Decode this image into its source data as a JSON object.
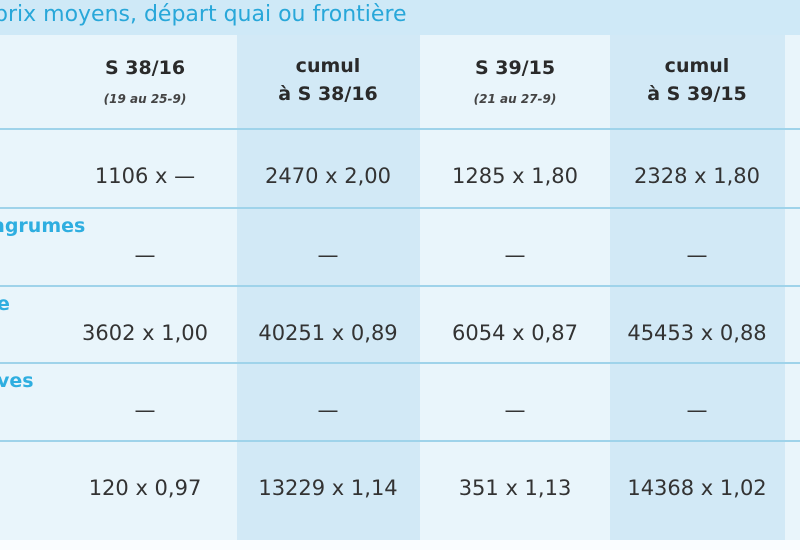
{
  "header": {
    "title": "prix moyens, départ quai ou frontière"
  },
  "table": {
    "columns": [
      {
        "lines": [
          "S 38/16"
        ],
        "sub": "(19 au 25-9)"
      },
      {
        "lines": [
          "cumul",
          "à S 38/16"
        ]
      },
      {
        "lines": [
          "S 39/15"
        ],
        "sub": "(21 au 27-9)"
      },
      {
        "lines": [
          "cumul",
          "à S 39/15"
        ]
      }
    ],
    "rows": [
      {
        "cells": [
          "1106 x —",
          "2470 x 2,00",
          "1285 x 1,80",
          "2328 x 1,80"
        ]
      },
      {
        "label": "agrumes",
        "cells": [
          "—",
          "—",
          "—",
          "—"
        ]
      },
      {
        "label": "e",
        "cells": [
          "3602 x 1,00",
          "40251 x 0,89",
          "6054 x 0,87",
          "45453 x 0,88"
        ]
      },
      {
        "label": "ves",
        "cells": [
          "—",
          "—",
          "—",
          "—"
        ]
      },
      {
        "cells": [
          "120 x 0,97",
          "13229 x 1,14",
          "351 x 1,13",
          "14368 x 1,02"
        ]
      }
    ]
  }
}
